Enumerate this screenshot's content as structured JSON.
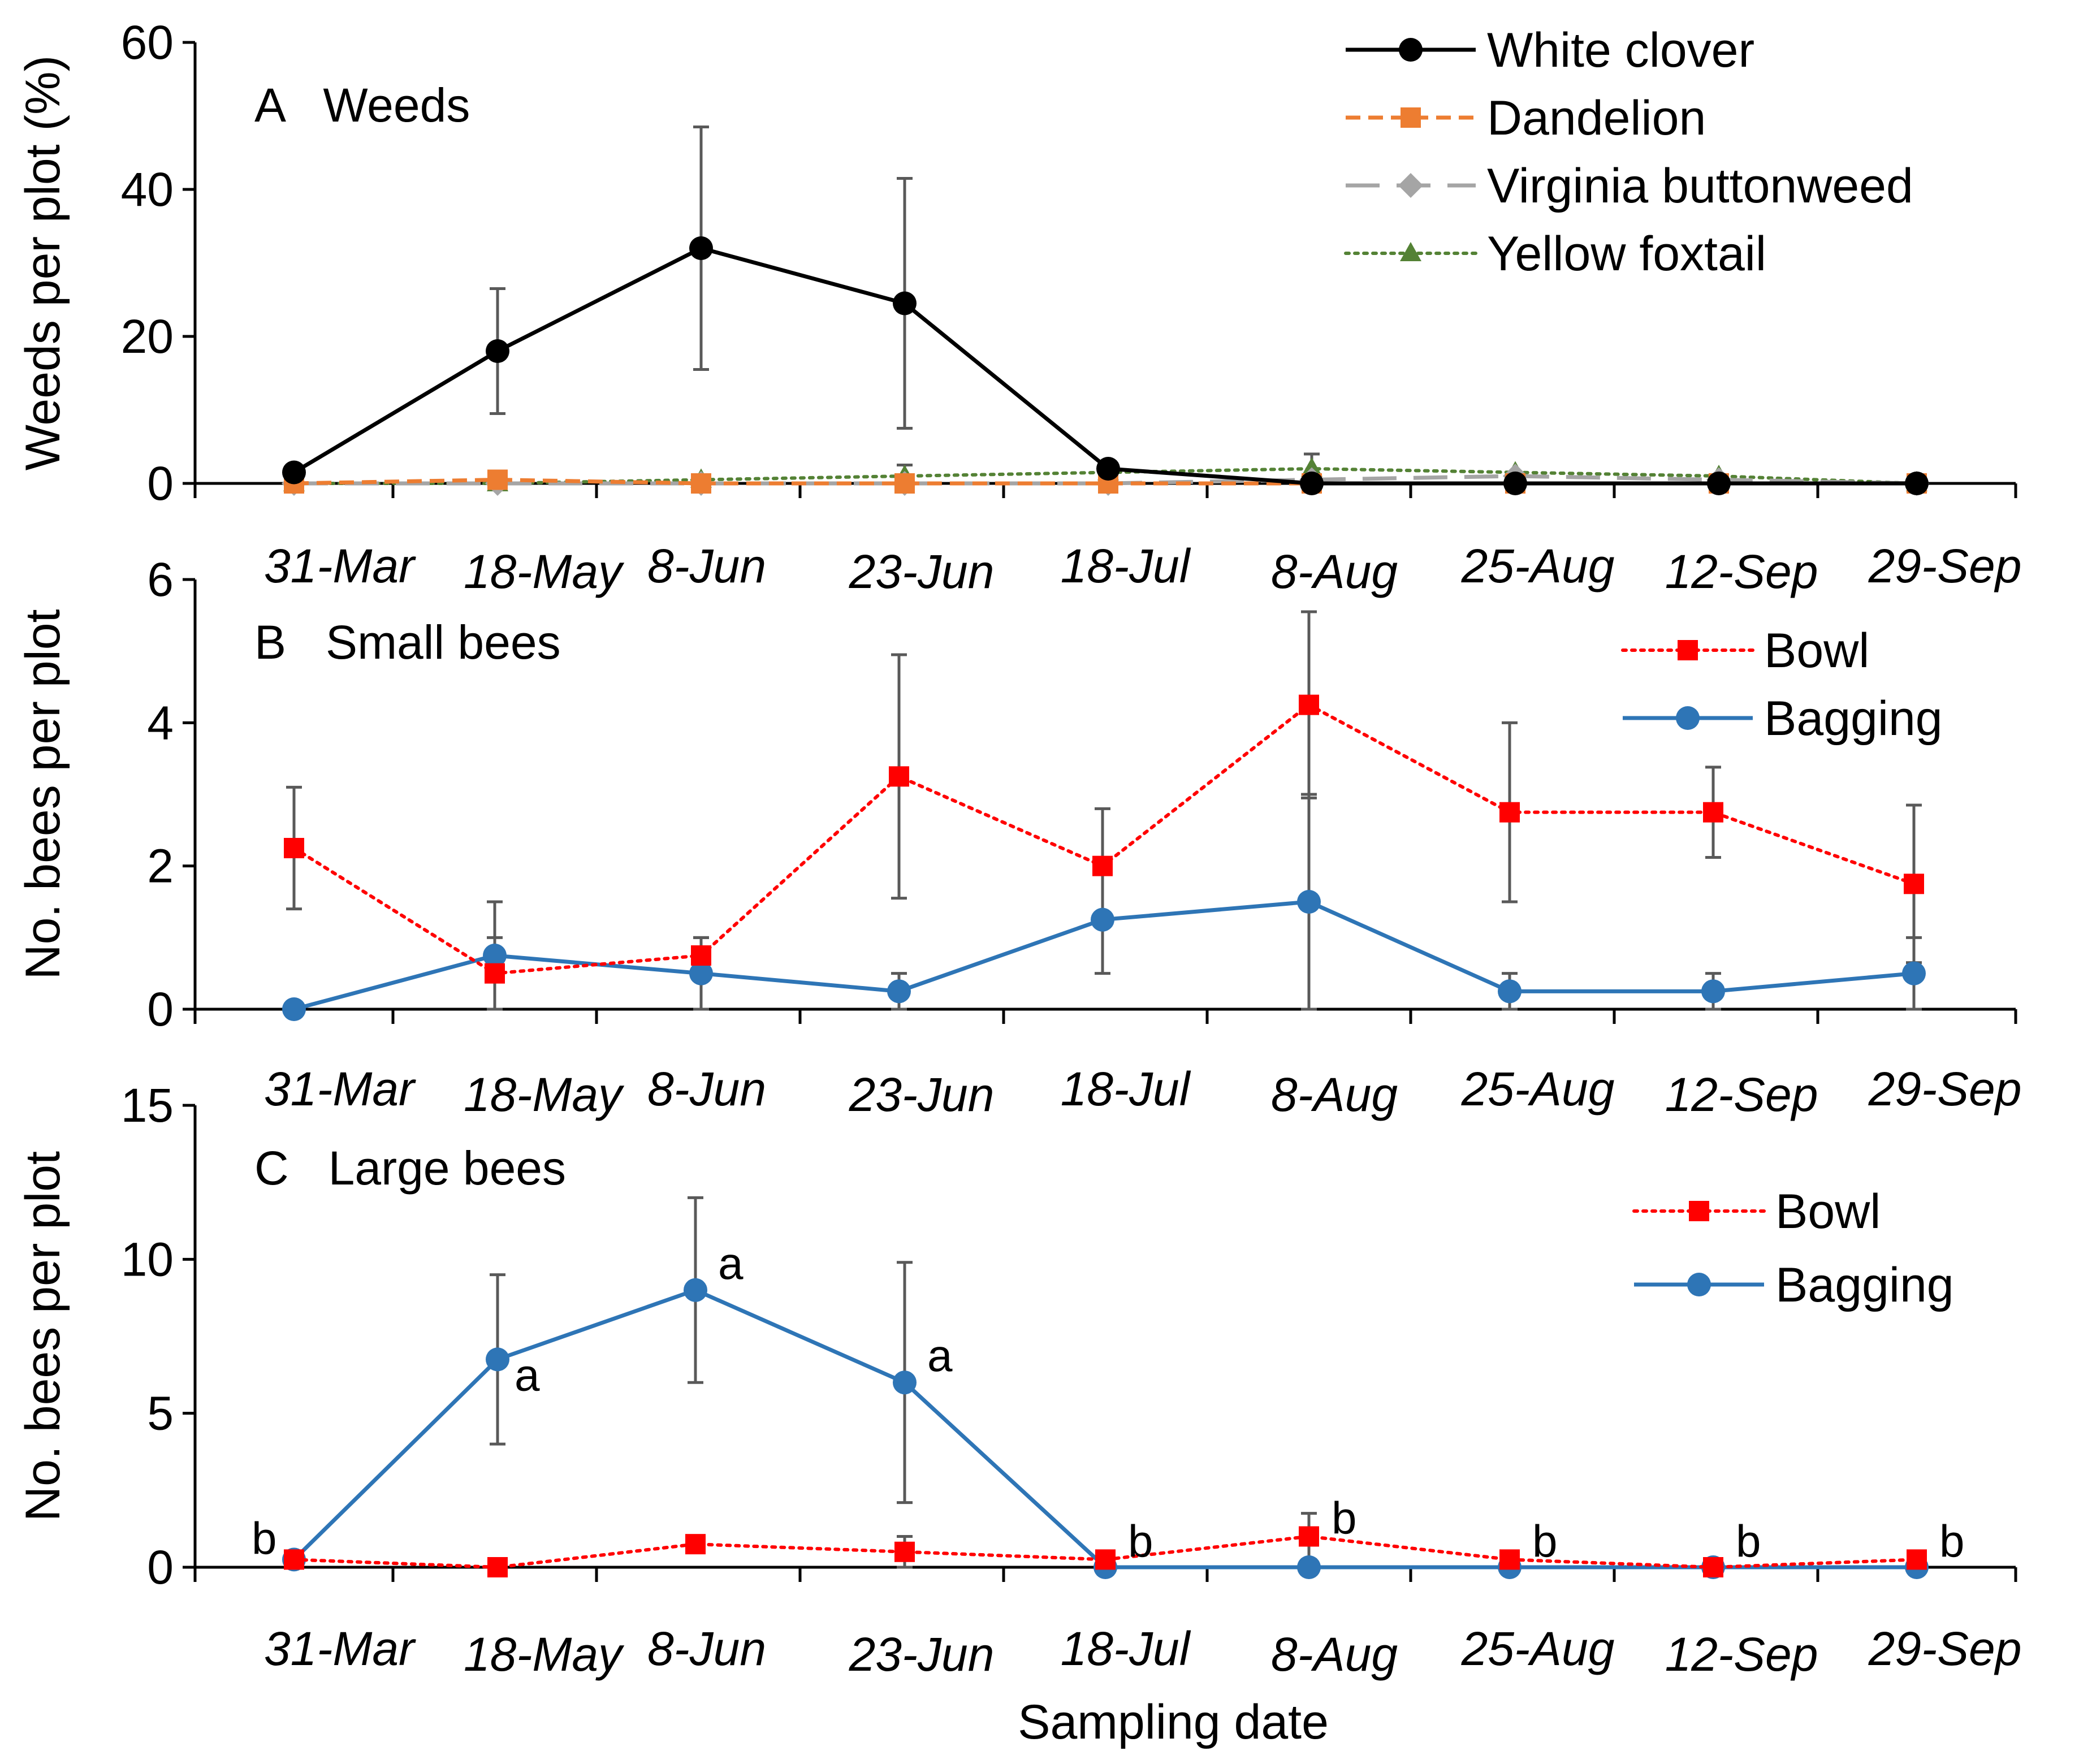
{
  "chart_data": [
    {
      "type": "line",
      "panel_title": "A   Weeds",
      "ylabel": "Weeds per plot (%)",
      "xlabel": "",
      "ylim": [
        0,
        60
      ],
      "yticks": [
        0,
        20,
        40,
        60
      ],
      "categories": [
        "31-Mar",
        "18-May",
        "8-Jun",
        "23-Jun",
        "18-Jul",
        "8-Aug",
        "25-Aug",
        "12-Sep",
        "29-Sep"
      ],
      "legend_position": "top-right",
      "series": [
        {
          "name": "White clover",
          "color": "#000000",
          "dash": "solid",
          "marker": "circle",
          "values": [
            1.5,
            18,
            32,
            24.5,
            2,
            0,
            0,
            0,
            0
          ],
          "error": [
            0,
            8.5,
            16.5,
            17,
            0,
            0,
            0,
            0,
            0
          ]
        },
        {
          "name": "Dandelion",
          "color": "#ed7d31",
          "dash": "dashed",
          "marker": "square",
          "values": [
            0,
            0.5,
            0,
            0,
            0,
            0,
            0,
            0,
            0
          ],
          "error": [
            0,
            0,
            0,
            0,
            0,
            0,
            0,
            0,
            0
          ]
        },
        {
          "name": "Virginia buttonweed",
          "color": "#a5a5a5",
          "dash": "longdash",
          "marker": "diamond",
          "values": [
            0,
            0,
            0,
            0,
            0,
            0.5,
            1,
            0.5,
            0
          ],
          "error": [
            0,
            0,
            0,
            0,
            0,
            0,
            0,
            0,
            0
          ]
        },
        {
          "name": "Yellow foxtail",
          "color": "#548235",
          "dash": "dotted",
          "marker": "triangle",
          "values": [
            0,
            0,
            0.5,
            1,
            1.5,
            2,
            1.5,
            1,
            0
          ],
          "error": [
            0,
            0,
            0,
            1.5,
            0,
            2,
            0,
            0,
            0
          ]
        }
      ]
    },
    {
      "type": "line",
      "panel_title": "B   Small bees",
      "ylabel": "No. bees per plot",
      "xlabel": "",
      "ylim": [
        0,
        6
      ],
      "yticks": [
        0,
        2,
        4,
        6
      ],
      "categories": [
        "31-Mar",
        "18-May",
        "8-Jun",
        "23-Jun",
        "18-Jul",
        "8-Aug",
        "25-Aug",
        "12-Sep",
        "29-Sep"
      ],
      "legend_position": "top-right",
      "series": [
        {
          "name": "Bowl",
          "color": "#ff0000",
          "dash": "dotted",
          "marker": "square",
          "values": [
            2.25,
            0.5,
            0.75,
            3.25,
            2,
            4.25,
            2.75,
            2.75,
            1.75
          ],
          "error": [
            0.85,
            0.5,
            0.25,
            1.7,
            0.8,
            1.3,
            1.25,
            0.63,
            1.1
          ]
        },
        {
          "name": "Bagging",
          "color": "#2e75b6",
          "dash": "solid",
          "marker": "circle",
          "values": [
            0,
            0.75,
            0.5,
            0.25,
            1.25,
            1.5,
            0.25,
            0.25,
            0.5
          ],
          "error": [
            0,
            0.75,
            0.5,
            0.25,
            0.75,
            1.5,
            0.25,
            0.25,
            0.5
          ]
        }
      ]
    },
    {
      "type": "line",
      "panel_title": "C   Large bees",
      "ylabel": "No. bees per plot",
      "xlabel": "Sampling date",
      "ylim": [
        0,
        15
      ],
      "yticks": [
        0,
        5,
        10,
        15
      ],
      "categories": [
        "31-Mar",
        "18-May",
        "8-Jun",
        "23-Jun",
        "18-Jul",
        "8-Aug",
        "25-Aug",
        "12-Sep",
        "29-Sep"
      ],
      "legend_position": "top-right",
      "series": [
        {
          "name": "Bowl",
          "color": "#ff0000",
          "dash": "dotted",
          "marker": "square",
          "values": [
            0.25,
            0,
            0.75,
            0.5,
            0.25,
            1,
            0.25,
            0,
            0.25
          ],
          "error": [
            0,
            0,
            0,
            0.5,
            0,
            0.75,
            0,
            0,
            0
          ]
        },
        {
          "name": "Bagging",
          "color": "#2e75b6",
          "dash": "solid",
          "marker": "circle",
          "values": [
            0.25,
            6.75,
            9,
            6,
            0,
            0,
            0,
            0,
            0
          ],
          "error": [
            0,
            2.75,
            3,
            3.9,
            0,
            0,
            0,
            0,
            0
          ]
        }
      ],
      "annotations": [
        {
          "text": "b",
          "index": 0,
          "value": 0.25,
          "side": "left"
        },
        {
          "text": "a",
          "index": 1,
          "value": 6.75,
          "side": "right-low"
        },
        {
          "text": "a",
          "index": 2,
          "value": 9,
          "side": "right-high"
        },
        {
          "text": "a",
          "index": 3,
          "value": 6,
          "side": "right-high"
        },
        {
          "text": "b",
          "index": 4,
          "value": 0.25,
          "side": "right"
        },
        {
          "text": "b",
          "index": 5,
          "value": 1,
          "side": "right"
        },
        {
          "text": "b",
          "index": 6,
          "value": 0.25,
          "side": "right"
        },
        {
          "text": "b",
          "index": 7,
          "value": 0.25,
          "side": "right"
        },
        {
          "text": "b",
          "index": 8,
          "value": 0.25,
          "side": "right"
        }
      ]
    }
  ]
}
